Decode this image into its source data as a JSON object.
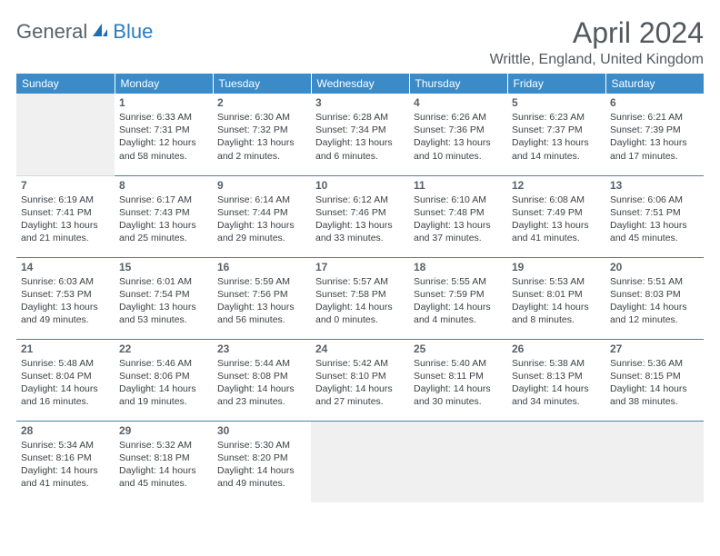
{
  "logo": {
    "text1": "General",
    "text2": "Blue",
    "icon_fill": "#1f6db3"
  },
  "title": "April 2024",
  "location": "Writtle, England, United Kingdom",
  "colors": {
    "header_bg": "#3b8bc8",
    "header_fg": "#ffffff",
    "row_divider": "#4a7fa8",
    "empty_bg": "#f0f0f0",
    "daynum_color": "#576169",
    "info_color": "#3b3f43",
    "title_color": "#52595f"
  },
  "day_headers": [
    "Sunday",
    "Monday",
    "Tuesday",
    "Wednesday",
    "Thursday",
    "Friday",
    "Saturday"
  ],
  "weeks": [
    [
      null,
      {
        "n": "1",
        "sunrise": "6:33 AM",
        "sunset": "7:31 PM",
        "daylight": "12 hours and 58 minutes."
      },
      {
        "n": "2",
        "sunrise": "6:30 AM",
        "sunset": "7:32 PM",
        "daylight": "13 hours and 2 minutes."
      },
      {
        "n": "3",
        "sunrise": "6:28 AM",
        "sunset": "7:34 PM",
        "daylight": "13 hours and 6 minutes."
      },
      {
        "n": "4",
        "sunrise": "6:26 AM",
        "sunset": "7:36 PM",
        "daylight": "13 hours and 10 minutes."
      },
      {
        "n": "5",
        "sunrise": "6:23 AM",
        "sunset": "7:37 PM",
        "daylight": "13 hours and 14 minutes."
      },
      {
        "n": "6",
        "sunrise": "6:21 AM",
        "sunset": "7:39 PM",
        "daylight": "13 hours and 17 minutes."
      }
    ],
    [
      {
        "n": "7",
        "sunrise": "6:19 AM",
        "sunset": "7:41 PM",
        "daylight": "13 hours and 21 minutes."
      },
      {
        "n": "8",
        "sunrise": "6:17 AM",
        "sunset": "7:43 PM",
        "daylight": "13 hours and 25 minutes."
      },
      {
        "n": "9",
        "sunrise": "6:14 AM",
        "sunset": "7:44 PM",
        "daylight": "13 hours and 29 minutes."
      },
      {
        "n": "10",
        "sunrise": "6:12 AM",
        "sunset": "7:46 PM",
        "daylight": "13 hours and 33 minutes."
      },
      {
        "n": "11",
        "sunrise": "6:10 AM",
        "sunset": "7:48 PM",
        "daylight": "13 hours and 37 minutes."
      },
      {
        "n": "12",
        "sunrise": "6:08 AM",
        "sunset": "7:49 PM",
        "daylight": "13 hours and 41 minutes."
      },
      {
        "n": "13",
        "sunrise": "6:06 AM",
        "sunset": "7:51 PM",
        "daylight": "13 hours and 45 minutes."
      }
    ],
    [
      {
        "n": "14",
        "sunrise": "6:03 AM",
        "sunset": "7:53 PM",
        "daylight": "13 hours and 49 minutes."
      },
      {
        "n": "15",
        "sunrise": "6:01 AM",
        "sunset": "7:54 PM",
        "daylight": "13 hours and 53 minutes."
      },
      {
        "n": "16",
        "sunrise": "5:59 AM",
        "sunset": "7:56 PM",
        "daylight": "13 hours and 56 minutes."
      },
      {
        "n": "17",
        "sunrise": "5:57 AM",
        "sunset": "7:58 PM",
        "daylight": "14 hours and 0 minutes."
      },
      {
        "n": "18",
        "sunrise": "5:55 AM",
        "sunset": "7:59 PM",
        "daylight": "14 hours and 4 minutes."
      },
      {
        "n": "19",
        "sunrise": "5:53 AM",
        "sunset": "8:01 PM",
        "daylight": "14 hours and 8 minutes."
      },
      {
        "n": "20",
        "sunrise": "5:51 AM",
        "sunset": "8:03 PM",
        "daylight": "14 hours and 12 minutes."
      }
    ],
    [
      {
        "n": "21",
        "sunrise": "5:48 AM",
        "sunset": "8:04 PM",
        "daylight": "14 hours and 16 minutes."
      },
      {
        "n": "22",
        "sunrise": "5:46 AM",
        "sunset": "8:06 PM",
        "daylight": "14 hours and 19 minutes."
      },
      {
        "n": "23",
        "sunrise": "5:44 AM",
        "sunset": "8:08 PM",
        "daylight": "14 hours and 23 minutes."
      },
      {
        "n": "24",
        "sunrise": "5:42 AM",
        "sunset": "8:10 PM",
        "daylight": "14 hours and 27 minutes."
      },
      {
        "n": "25",
        "sunrise": "5:40 AM",
        "sunset": "8:11 PM",
        "daylight": "14 hours and 30 minutes."
      },
      {
        "n": "26",
        "sunrise": "5:38 AM",
        "sunset": "8:13 PM",
        "daylight": "14 hours and 34 minutes."
      },
      {
        "n": "27",
        "sunrise": "5:36 AM",
        "sunset": "8:15 PM",
        "daylight": "14 hours and 38 minutes."
      }
    ],
    [
      {
        "n": "28",
        "sunrise": "5:34 AM",
        "sunset": "8:16 PM",
        "daylight": "14 hours and 41 minutes."
      },
      {
        "n": "29",
        "sunrise": "5:32 AM",
        "sunset": "8:18 PM",
        "daylight": "14 hours and 45 minutes."
      },
      {
        "n": "30",
        "sunrise": "5:30 AM",
        "sunset": "8:20 PM",
        "daylight": "14 hours and 49 minutes."
      },
      null,
      null,
      null,
      null
    ]
  ],
  "labels": {
    "sunrise": "Sunrise:",
    "sunset": "Sunset:",
    "daylight": "Daylight:"
  }
}
